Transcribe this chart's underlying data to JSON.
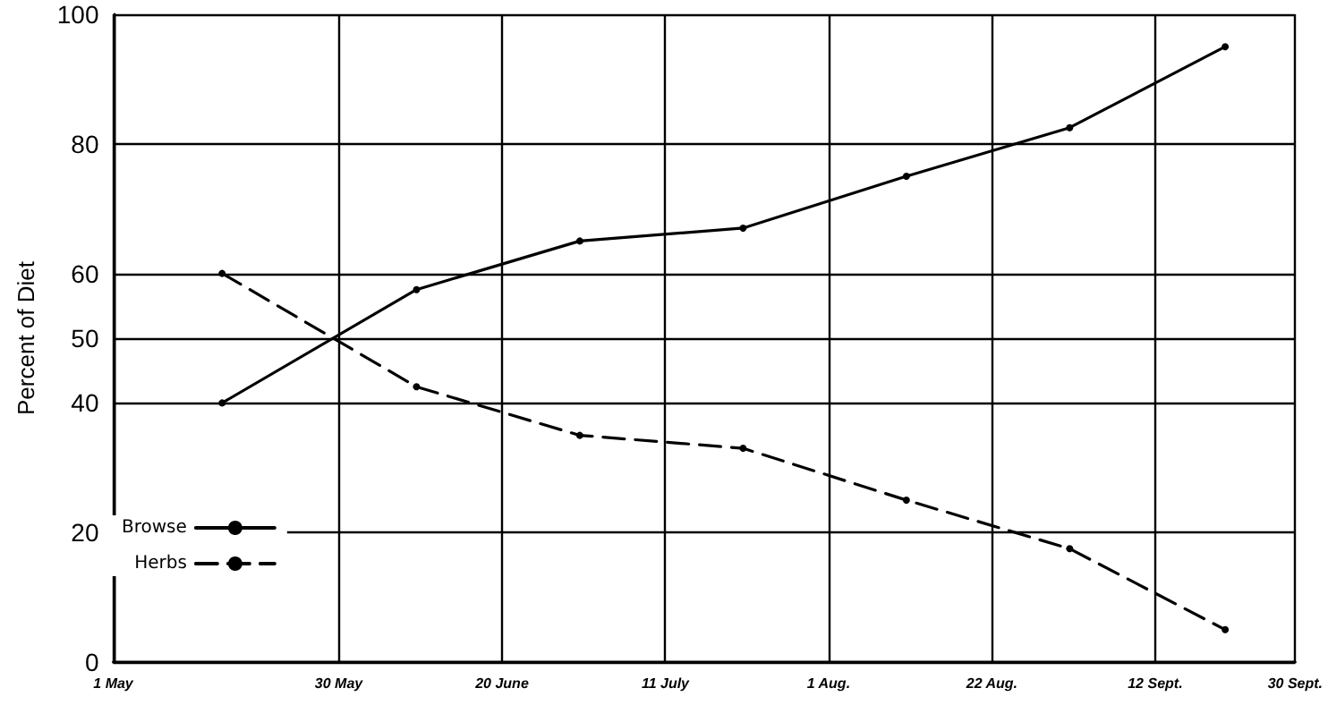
{
  "chart_data": {
    "type": "line",
    "ylabel": "Percent of Diet",
    "x": [
      "--05-15",
      "--06-09",
      "--06-30",
      "--07-21",
      "--08-11",
      "--09-01",
      "--09-21"
    ],
    "series": [
      {
        "name": "Browse",
        "color": "#000000",
        "line_style": "solid",
        "values": [
          40,
          57.5,
          65,
          67,
          75,
          82.5,
          95
        ]
      },
      {
        "name": "Herbs",
        "color": "#000000",
        "line_style": "dashed",
        "values": [
          60,
          42.5,
          35,
          33,
          25,
          17.5,
          5
        ]
      }
    ],
    "xlim": [
      "--05-01",
      "--09-30"
    ],
    "xticks": [
      {
        "value": "--05-01",
        "label": "1 May"
      },
      {
        "value": "--05-30",
        "label": "30 May"
      },
      {
        "value": "--06-20",
        "label": "20 June"
      },
      {
        "value": "--07-11",
        "label": "11 July"
      },
      {
        "value": "--08-01",
        "label": "1 Aug."
      },
      {
        "value": "--08-22",
        "label": "22 Aug."
      },
      {
        "value": "--09-12",
        "label": "12 Sept."
      },
      {
        "value": "--09-30",
        "label": "30 Sept."
      }
    ],
    "ylim": [
      0,
      100
    ],
    "yticks": [
      0,
      20,
      40,
      50,
      60,
      80,
      100
    ],
    "grid": true,
    "legend": "bottom left",
    "marker": "circle"
  }
}
